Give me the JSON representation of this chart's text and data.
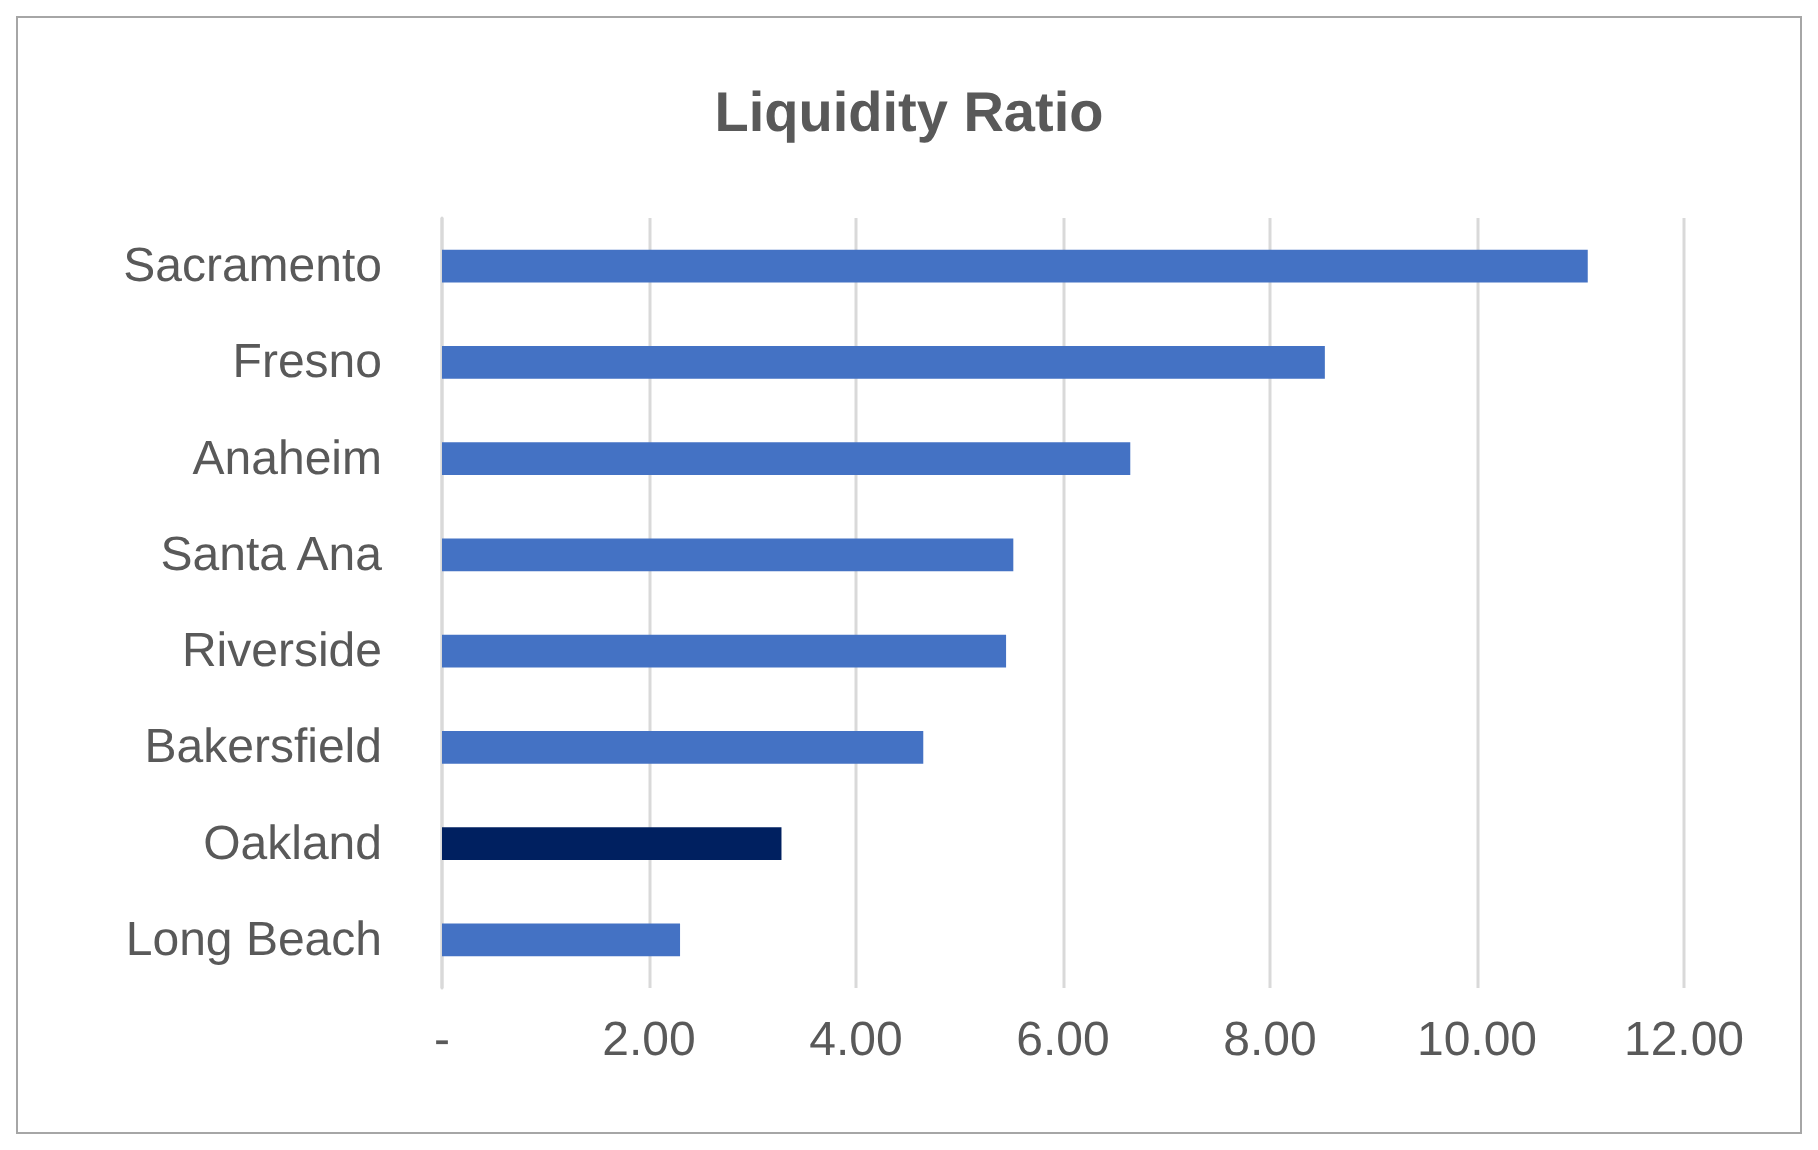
{
  "chart_data": {
    "type": "bar",
    "orientation": "horizontal",
    "title": "Liquidity Ratio",
    "categories": [
      "Sacramento",
      "Fresno",
      "Anaheim",
      "Santa Ana",
      "Riverside",
      "Bakersfield",
      "Oakland",
      "Long Beach"
    ],
    "values": [
      11.07,
      8.53,
      6.65,
      5.52,
      5.45,
      4.65,
      3.28,
      2.3
    ],
    "colors": [
      "#4472c4",
      "#4472c4",
      "#4472c4",
      "#4472c4",
      "#4472c4",
      "#4472c4",
      "#002060",
      "#4472c4"
    ],
    "xlim": [
      0,
      12
    ],
    "xticks": [
      {
        "value": 0,
        "label": "-"
      },
      {
        "value": 2,
        "label": "2.00"
      },
      {
        "value": 4,
        "label": "4.00"
      },
      {
        "value": 6,
        "label": "6.00"
      },
      {
        "value": 8,
        "label": "8.00"
      },
      {
        "value": 10,
        "label": "10.00"
      },
      {
        "value": 12,
        "label": "12.00"
      }
    ],
    "grid": "x"
  }
}
